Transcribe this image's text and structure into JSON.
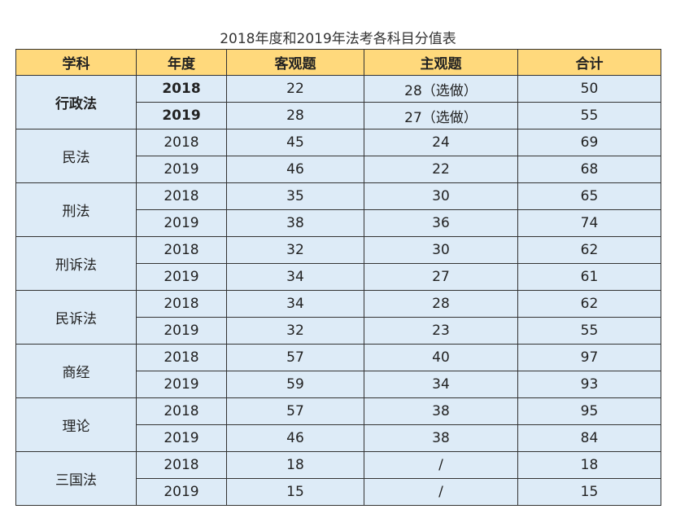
{
  "title": "2018年度和2019年法考各科目分值表",
  "headers": [
    "学科",
    "年度",
    "客观题",
    "主观题",
    "合计"
  ],
  "subjects": [
    {
      "name": "行政法",
      "bold": true,
      "rows": [
        [
          "2018",
          "22",
          "28（选做）",
          "50"
        ],
        [
          "2019",
          "28",
          "27（选做）",
          "55"
        ]
      ]
    },
    {
      "name": "民法",
      "rows": [
        [
          "2018",
          "45",
          "24",
          "69"
        ],
        [
          "2019",
          "46",
          "22",
          "68"
        ]
      ]
    },
    {
      "name": "刑法",
      "rows": [
        [
          "2018",
          "35",
          "30",
          "65"
        ],
        [
          "2019",
          "38",
          "36",
          "74"
        ]
      ]
    },
    {
      "name": "刑诉法",
      "rows": [
        [
          "2018",
          "32",
          "30",
          "62"
        ],
        [
          "2019",
          "34",
          "27",
          "61"
        ]
      ]
    },
    {
      "name": "民诉法",
      "rows": [
        [
          "2018",
          "34",
          "28",
          "62"
        ],
        [
          "2019",
          "32",
          "23",
          "55"
        ]
      ]
    },
    {
      "name": "商经",
      "rows": [
        [
          "2018",
          "57",
          "40",
          "97"
        ],
        [
          "2019",
          "59",
          "34",
          "93"
        ]
      ]
    },
    {
      "name": "理论",
      "rows": [
        [
          "2018",
          "57",
          "38",
          "95"
        ],
        [
          "2019",
          "46",
          "38",
          "84"
        ]
      ]
    },
    {
      "name": "三国法",
      "rows": [
        [
          "2018",
          "18",
          "/",
          "18"
        ],
        [
          "2019",
          "15",
          "/",
          "15"
        ]
      ]
    }
  ]
}
